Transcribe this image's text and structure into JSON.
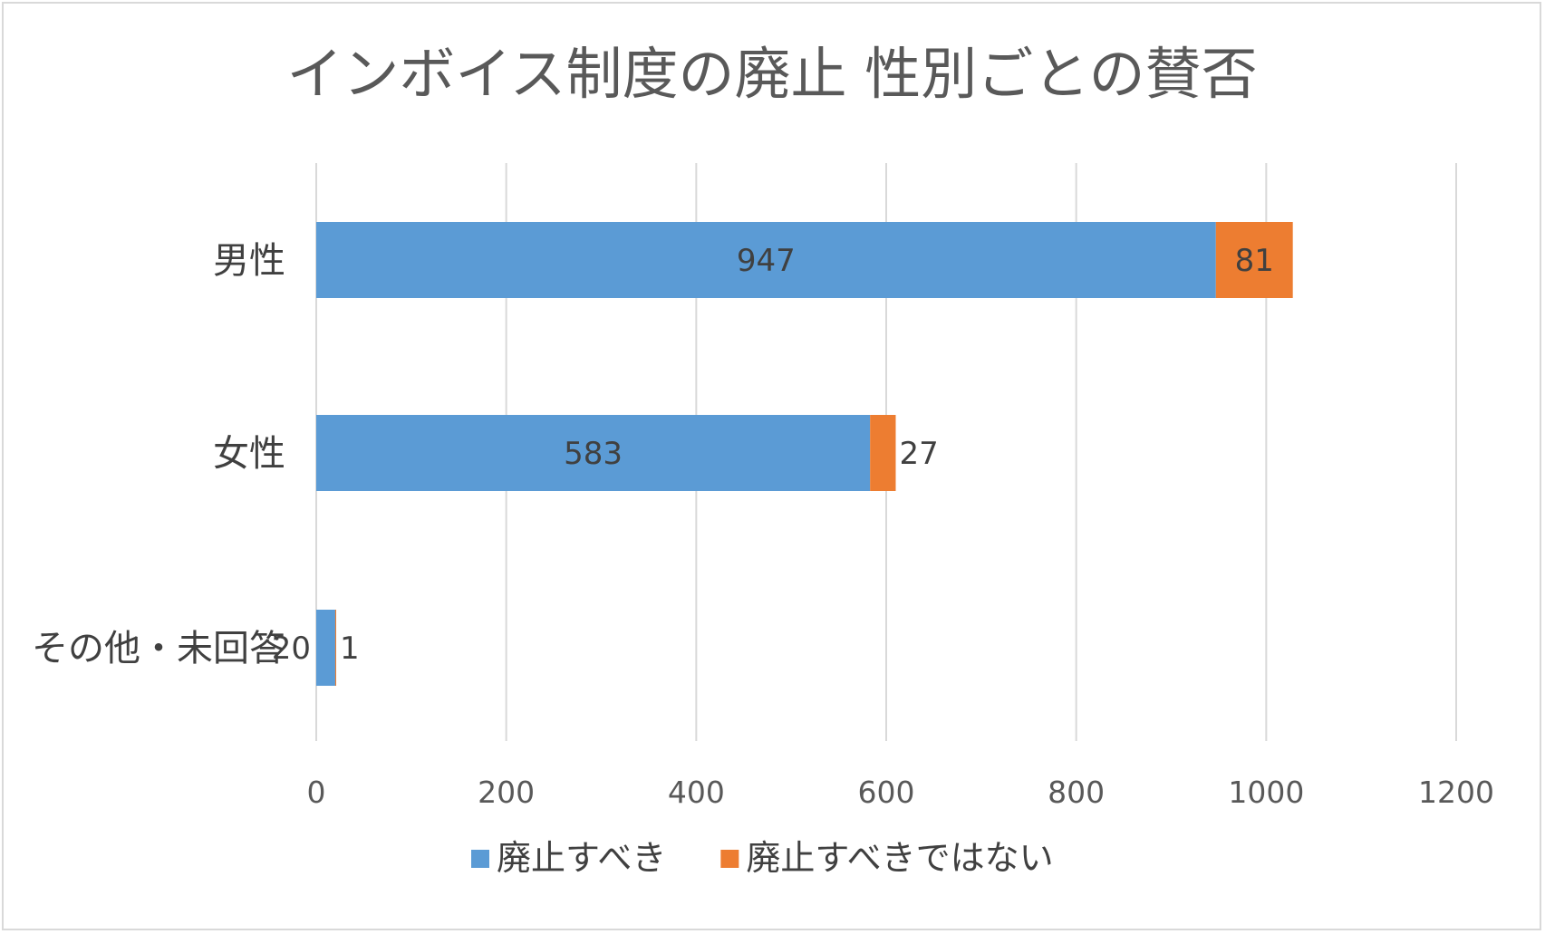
{
  "chart_data": {
    "type": "bar",
    "orientation": "horizontal",
    "stacked": true,
    "title": "インボイス制度の廃止 性別ごとの賛否",
    "categories": [
      "男性",
      "女性",
      "その他・未回答"
    ],
    "series": [
      {
        "name": "廃止すべき",
        "values": [
          947,
          583,
          20
        ],
        "color": "#5B9BD5"
      },
      {
        "name": "廃止すべきではない",
        "values": [
          81,
          27,
          1
        ],
        "color": "#ED7D31"
      }
    ],
    "xlim": [
      0,
      1200
    ],
    "xticks": [
      "0",
      "200",
      "400",
      "600",
      "800",
      "1000",
      "1200"
    ],
    "grid": true,
    "legend": "bottom"
  }
}
